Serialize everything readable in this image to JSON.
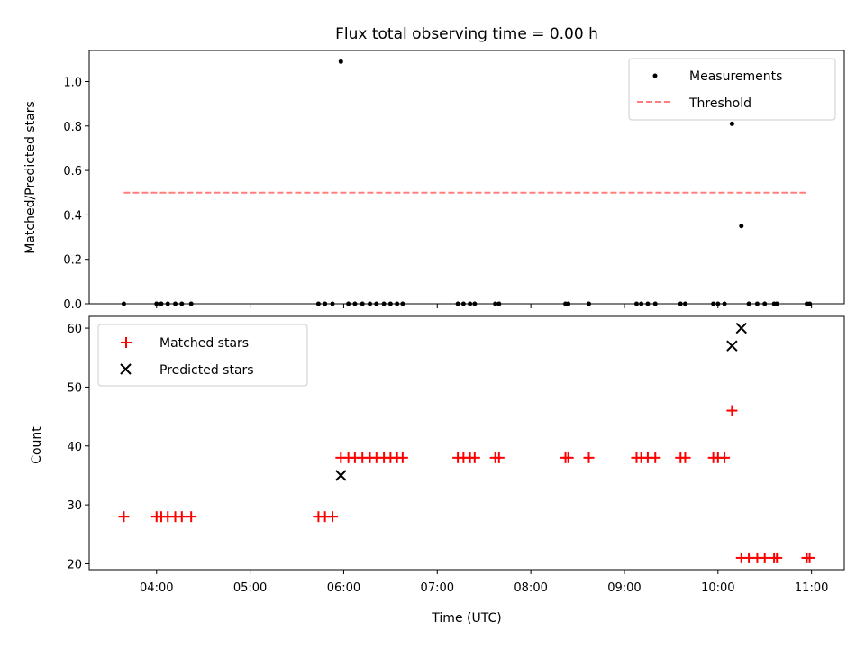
{
  "chart_data": [
    {
      "type": "scatter",
      "title": "Flux total observing time = 0.00 h",
      "xlabel": "",
      "ylabel": "Matched/Predicted stars",
      "ylim": [
        0,
        1.14
      ],
      "yticks": [
        0.0,
        0.2,
        0.4,
        0.6,
        0.8,
        1.0
      ],
      "ytick_labels": [
        "0.0",
        "0.2",
        "0.4",
        "0.6",
        "0.8",
        "1.0"
      ],
      "xlim_hours": [
        3.28,
        11.35
      ],
      "legend_position": "top-right",
      "threshold": {
        "name": "Threshold",
        "value": 0.5,
        "x_start": 3.65,
        "x_end": 10.95,
        "color": "#ff7f7f"
      },
      "series": [
        {
          "name": "Measurements",
          "color": "#000000",
          "x": [
            3.65,
            4.0,
            4.05,
            4.12,
            4.2,
            4.27,
            4.37,
            5.73,
            5.8,
            5.88,
            5.97,
            6.05,
            6.12,
            6.2,
            6.28,
            6.35,
            6.43,
            6.5,
            6.57,
            6.63,
            7.22,
            7.28,
            7.35,
            7.4,
            7.62,
            7.66,
            8.37,
            8.4,
            8.62,
            9.13,
            9.18,
            9.25,
            9.33,
            9.6,
            9.65,
            9.95,
            10.0,
            10.07,
            10.15,
            10.25,
            10.33,
            10.42,
            10.5,
            10.6,
            10.63,
            10.95,
            10.98
          ],
          "y": [
            0,
            0,
            0,
            0,
            0,
            0,
            0,
            0,
            0,
            0,
            1.09,
            0,
            0,
            0,
            0,
            0,
            0,
            0,
            0,
            0,
            0,
            0,
            0,
            0,
            0,
            0,
            0,
            0,
            0,
            0,
            0,
            0,
            0,
            0,
            0,
            0,
            0,
            0,
            0.81,
            0.35,
            0,
            0,
            0,
            0,
            0,
            0,
            0
          ]
        }
      ],
      "xticks_hours": [
        4,
        5,
        6,
        7,
        8,
        9,
        10,
        11
      ]
    },
    {
      "type": "scatter",
      "title": "",
      "xlabel": "Time (UTC)",
      "ylabel": "Count",
      "ylim": [
        19,
        62
      ],
      "yticks": [
        20,
        30,
        40,
        50,
        60
      ],
      "ytick_labels": [
        "20",
        "30",
        "40",
        "50",
        "60"
      ],
      "xlim_hours": [
        3.28,
        11.35
      ],
      "xticks_hours": [
        4,
        5,
        6,
        7,
        8,
        9,
        10,
        11
      ],
      "xtick_labels": [
        "04:00",
        "05:00",
        "06:00",
        "07:00",
        "08:00",
        "09:00",
        "10:00",
        "11:00"
      ],
      "legend_position": "top-left",
      "series": [
        {
          "name": "Matched stars",
          "marker": "plus",
          "color": "#ff0000",
          "x": [
            3.65,
            4.0,
            4.05,
            4.12,
            4.2,
            4.27,
            4.37,
            5.73,
            5.8,
            5.88,
            5.97,
            6.05,
            6.12,
            6.2,
            6.28,
            6.35,
            6.43,
            6.5,
            6.57,
            6.63,
            7.22,
            7.28,
            7.35,
            7.4,
            7.62,
            7.66,
            8.37,
            8.4,
            8.62,
            9.13,
            9.18,
            9.25,
            9.33,
            9.6,
            9.65,
            9.95,
            10.0,
            10.07,
            10.15,
            10.25,
            10.33,
            10.42,
            10.5,
            10.6,
            10.63,
            10.95,
            10.98
          ],
          "y": [
            28,
            28,
            28,
            28,
            28,
            28,
            28,
            28,
            28,
            28,
            38,
            38,
            38,
            38,
            38,
            38,
            38,
            38,
            38,
            38,
            38,
            38,
            38,
            38,
            38,
            38,
            38,
            38,
            38,
            38,
            38,
            38,
            38,
            38,
            38,
            38,
            38,
            38,
            46,
            21,
            21,
            21,
            21,
            21,
            21,
            21,
            21
          ]
        },
        {
          "name": "Predicted stars",
          "marker": "x",
          "color": "#000000",
          "x": [
            5.97,
            10.15,
            10.25
          ],
          "y": [
            35,
            57,
            60
          ]
        }
      ]
    }
  ]
}
